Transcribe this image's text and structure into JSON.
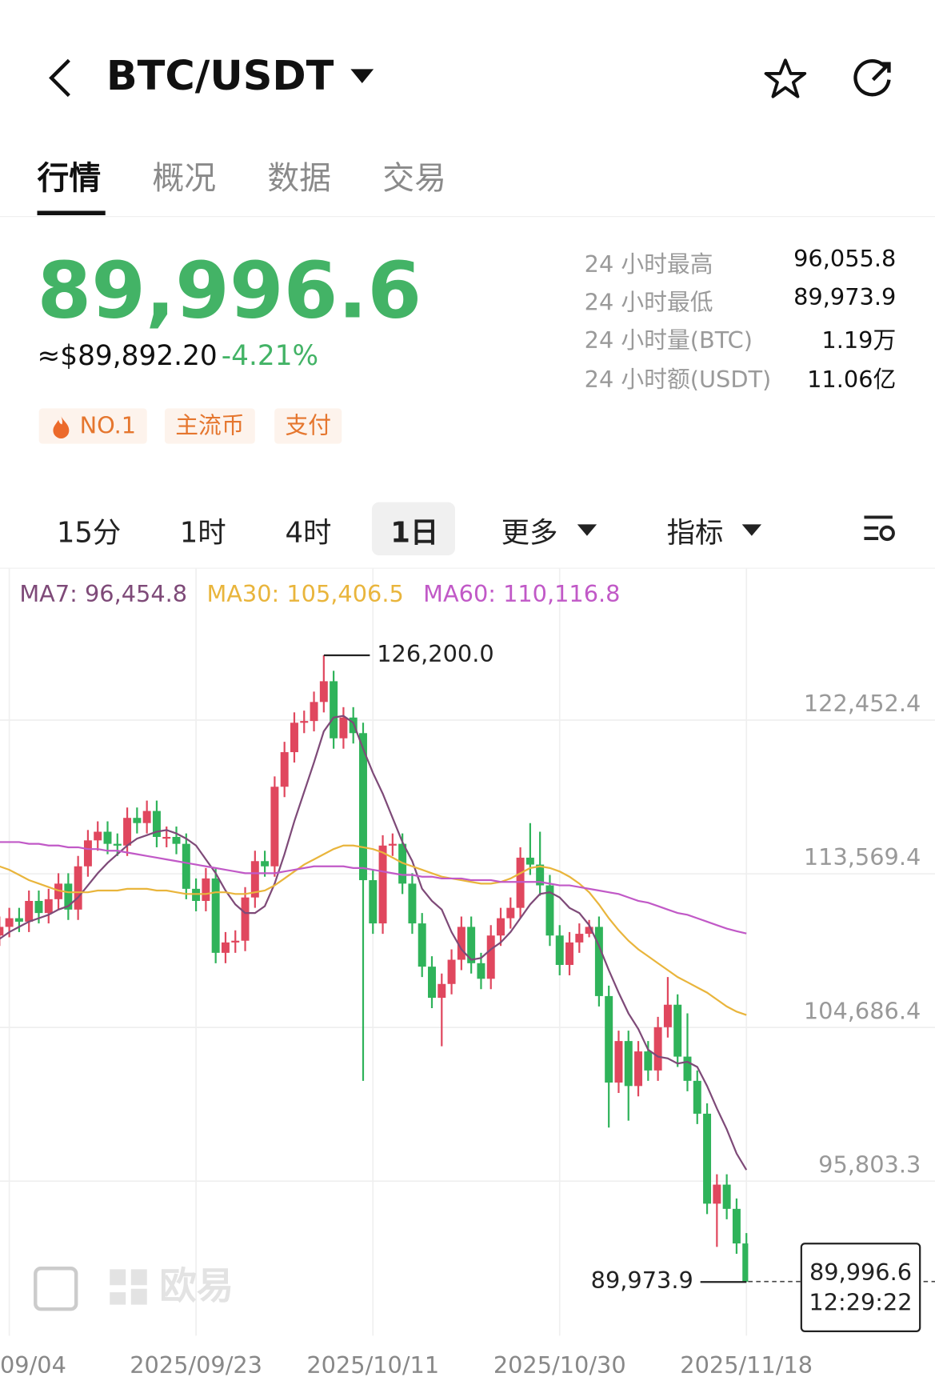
{
  "header": {
    "pair": "BTC/USDT"
  },
  "tabs": [
    "行情",
    "概况",
    "数据",
    "交易"
  ],
  "price": {
    "last": "89,996.6",
    "approx": "≈$89,892.20",
    "change": "-4.21%"
  },
  "tags": [
    "NO.1",
    "主流币",
    "支付"
  ],
  "stats": [
    {
      "label": "24 小时最高",
      "value": "96,055.8"
    },
    {
      "label": "24 小时最低",
      "value": "89,973.9"
    },
    {
      "label": "24 小时量(BTC)",
      "value": "1.19万"
    },
    {
      "label": "24 小时额(USDT)",
      "value": "11.06亿"
    }
  ],
  "intervals": [
    "15分",
    "1时",
    "4时",
    "1日",
    "更多",
    "指标"
  ],
  "watermark": "欧易",
  "chart_data": {
    "type": "candlestick",
    "categories": [
      null,
      "09/04",
      null,
      null,
      null,
      null,
      null,
      null,
      null,
      null,
      null,
      null,
      null,
      null,
      null,
      null,
      null,
      null,
      null,
      null,
      "2025/09/23",
      null,
      null,
      null,
      null,
      null,
      null,
      null,
      null,
      null,
      null,
      null,
      null,
      null,
      null,
      null,
      null,
      null,
      "2025/10/11",
      null,
      null,
      null,
      null,
      null,
      null,
      null,
      null,
      null,
      null,
      null,
      null,
      null,
      null,
      null,
      null,
      null,
      null,
      "2025/10/30",
      null,
      null,
      null,
      null,
      null,
      null,
      null,
      null,
      null,
      null,
      null,
      null,
      null,
      null,
      null,
      null,
      null,
      null,
      "2025/11/18"
    ],
    "open": [
      110000,
      110500,
      111000,
      110800,
      112000,
      111300,
      112100,
      113000,
      111500,
      114000,
      115500,
      116000,
      115300,
      115200,
      116800,
      116500,
      117200,
      115700,
      115700,
      115300,
      112700,
      112000,
      113300,
      109000,
      109600,
      109700,
      112200,
      114300,
      114000,
      118600,
      120600,
      122300,
      122400,
      123500,
      124700,
      121400,
      122600,
      121700,
      113200,
      110700,
      115200,
      115300,
      113000,
      110700,
      108200,
      106400,
      107200,
      108600,
      110500,
      108400,
      107500,
      110000,
      111000,
      111600,
      114500,
      114100,
      112900,
      110000,
      108300,
      109600,
      110100,
      110500,
      106500,
      101500,
      103900,
      101300,
      103300,
      102200,
      104700,
      106000,
      103000,
      101600,
      99700,
      94500,
      95600,
      94200,
      92200
    ],
    "high": [
      111100,
      111600,
      111600,
      112600,
      112600,
      112700,
      113600,
      113600,
      114600,
      116100,
      116600,
      116600,
      115900,
      117400,
      117400,
      117800,
      117800,
      116300,
      116300,
      115900,
      113300,
      113900,
      113900,
      110200,
      110300,
      112800,
      114900,
      114900,
      119200,
      121200,
      122900,
      123000,
      124100,
      126200,
      125300,
      123200,
      123200,
      122300,
      113800,
      115800,
      115900,
      115900,
      113600,
      111300,
      108800,
      107800,
      109200,
      111100,
      111100,
      109000,
      110600,
      111600,
      112200,
      115100,
      116500,
      116000,
      113500,
      110600,
      110200,
      110700,
      110900,
      111100,
      107100,
      104500,
      104500,
      103900,
      103900,
      105300,
      107600,
      106600,
      105500,
      102200,
      100300,
      96200,
      96200,
      94800,
      92800
    ],
    "low": [
      109400,
      109900,
      110200,
      110200,
      110700,
      110700,
      111500,
      110900,
      110900,
      113400,
      114900,
      114700,
      114600,
      114600,
      115900,
      115900,
      115100,
      115100,
      114700,
      112100,
      111400,
      111400,
      108400,
      108400,
      109000,
      109100,
      111600,
      113400,
      113400,
      118000,
      120000,
      121700,
      121800,
      122900,
      120800,
      120800,
      121100,
      101600,
      110100,
      110100,
      114600,
      112400,
      110100,
      107600,
      105800,
      103600,
      106600,
      108000,
      107800,
      106900,
      106900,
      109400,
      110400,
      111000,
      113500,
      112300,
      109400,
      107700,
      107700,
      109000,
      109900,
      105900,
      98900,
      100900,
      99300,
      100700,
      101600,
      101600,
      104100,
      102400,
      101000,
      99100,
      93900,
      92000,
      93600,
      91600,
      89973.9
    ],
    "close": [
      110500,
      111000,
      110800,
      112000,
      111300,
      112100,
      113000,
      111500,
      114000,
      115500,
      116000,
      115300,
      115200,
      116800,
      116500,
      117200,
      115700,
      115700,
      115300,
      112700,
      112000,
      113300,
      109000,
      109600,
      109700,
      112200,
      114300,
      114000,
      118600,
      120600,
      122300,
      122400,
      123500,
      124700,
      121400,
      122600,
      121700,
      113200,
      110700,
      115200,
      115300,
      113000,
      110700,
      108200,
      106400,
      107200,
      108600,
      110500,
      108400,
      107500,
      110000,
      111000,
      111600,
      114500,
      114100,
      112900,
      110000,
      108300,
      109600,
      110100,
      110500,
      106500,
      101500,
      103900,
      101300,
      103300,
      102200,
      104700,
      106000,
      103000,
      101600,
      99700,
      94500,
      95600,
      94200,
      92200,
      89996.6
    ],
    "up_color": "#e0475e",
    "down_color": "#2fb35a",
    "series": [
      {
        "name": "MA7: 96,454.8",
        "color": "#7e4a78",
        "values": [
          109800,
          110200,
          110500,
          110800,
          111000,
          111200,
          111500,
          111700,
          112200,
          112900,
          113600,
          114200,
          114700,
          115200,
          115600,
          115800,
          116000,
          116100,
          115900,
          115600,
          115200,
          114400,
          113600,
          112600,
          111800,
          111300,
          111300,
          111700,
          113000,
          114700,
          116600,
          118300,
          120000,
          121800,
          122600,
          122700,
          122300,
          120800,
          119400,
          118200,
          116800,
          115400,
          114300,
          112700,
          112000,
          111500,
          110200,
          109200,
          108600,
          108700,
          109200,
          109600,
          110200,
          111000,
          111800,
          112400,
          112500,
          112200,
          111600,
          111300,
          110600,
          109400,
          108000,
          106700,
          105500,
          104600,
          103400,
          103000,
          102900,
          102600,
          102700,
          102400,
          101300,
          100000,
          98800,
          97400,
          96454.8
        ]
      },
      {
        "name": "MA30: 105,406.5",
        "color": "#e9b53c",
        "values": [
          114000,
          113800,
          113500,
          113200,
          113000,
          112800,
          112600,
          112500,
          112500,
          112500,
          112600,
          112600,
          112600,
          112700,
          112700,
          112700,
          112600,
          112600,
          112500,
          112400,
          112400,
          112400,
          112500,
          112500,
          112400,
          112400,
          112500,
          112600,
          112900,
          113300,
          113700,
          114100,
          114400,
          114700,
          115000,
          115200,
          115200,
          115100,
          115000,
          114800,
          114500,
          114200,
          114000,
          113800,
          113600,
          113400,
          113300,
          113200,
          113100,
          113000,
          113000,
          113100,
          113300,
          113600,
          113900,
          114000,
          113900,
          113700,
          113400,
          113000,
          112500,
          111800,
          111000,
          110300,
          109700,
          109200,
          108800,
          108400,
          108000,
          107600,
          107300,
          107000,
          106700,
          106300,
          105900,
          105600,
          105406.5
        ]
      },
      {
        "name": "MA60: 110,116.8",
        "color": "#c159c7",
        "values": [
          115400,
          115400,
          115400,
          115300,
          115300,
          115200,
          115200,
          115100,
          115100,
          115000,
          115000,
          114900,
          114900,
          114800,
          114700,
          114600,
          114500,
          114400,
          114300,
          114200,
          114100,
          114000,
          113900,
          113800,
          113700,
          113600,
          113600,
          113600,
          113600,
          113700,
          113800,
          113900,
          114000,
          114000,
          114000,
          114000,
          113900,
          113900,
          113800,
          113700,
          113600,
          113500,
          113500,
          113400,
          113400,
          113300,
          113300,
          113300,
          113200,
          113200,
          113200,
          113100,
          113100,
          113100,
          113100,
          113100,
          113000,
          112900,
          112900,
          112800,
          112700,
          112600,
          112500,
          112400,
          112200,
          112000,
          111900,
          111700,
          111500,
          111300,
          111200,
          111000,
          110800,
          110600,
          110400,
          110250,
          110116.8
        ]
      }
    ],
    "ylim": [
      86868,
      131054
    ],
    "yticks": [
      {
        "value": 95803.3,
        "label": "95,803.3"
      },
      {
        "value": 104686.4,
        "label": "104,686.4"
      },
      {
        "value": 113569.4,
        "label": "113,569.4"
      },
      {
        "value": 122452.4,
        "label": "122,452.4"
      }
    ],
    "grid": true,
    "high_marker": {
      "value": 126200,
      "label": "126,200.0"
    },
    "low_marker": {
      "value": 89973.9,
      "label": "89,973.9"
    },
    "last_price": {
      "value": 89996.6,
      "label": "89,996.6",
      "time": "12:29:22"
    }
  }
}
